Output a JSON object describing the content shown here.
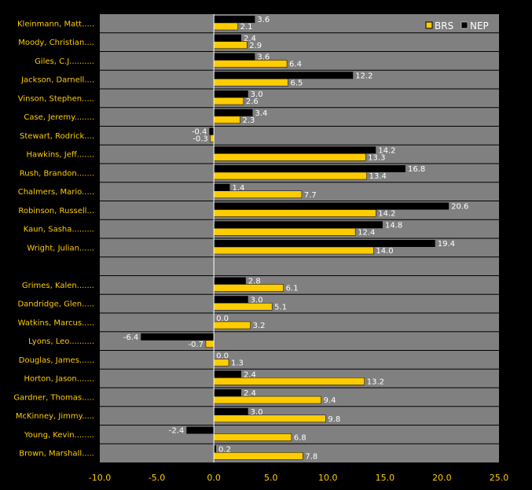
{
  "chart_data": {
    "type": "bar",
    "orientation": "horizontal",
    "title": "",
    "xlabel": "",
    "ylabel": "",
    "xlim": [
      -10,
      25
    ],
    "xticks": [
      -10,
      -5,
      0,
      5,
      10,
      15,
      20,
      25
    ],
    "xtick_labels": [
      "-10.0",
      "-5.0",
      "0.0",
      "5.0",
      "10.0",
      "15.0",
      "20.0",
      "25.0"
    ],
    "grid": true,
    "legend_position": "top-right",
    "categories": [
      "Kleinmann, Matt.....",
      "Moody, Christian....",
      "Giles, C.J..........",
      "Jackson, Darnell....",
      "Vinson, Stephen.....",
      "Case, Jeremy........",
      "Stewart, Rodrick....",
      "Hawkins, Jeff.......",
      "Rush, Brandon.......",
      "Chalmers, Mario.....",
      "Robinson, Russell...",
      "Kaun, Sasha.........",
      "Wright, Julian......",
      "",
      "Grimes, Kalen.......",
      "Dandridge, Glen.....",
      "Watkins, Marcus.....",
      "Lyons, Leo..........",
      "Douglas, James......",
      "Horton, Jason.......",
      "Gardner, Thomas.....",
      "McKinney, Jimmy.....",
      "Young, Kevin........",
      "Brown, Marshall....."
    ],
    "series": [
      {
        "name": "NEP",
        "color": "#000000",
        "values": [
          3.6,
          2.4,
          3.6,
          12.2,
          3.0,
          3.4,
          -0.4,
          14.2,
          16.8,
          1.4,
          20.6,
          14.8,
          19.4,
          null,
          2.8,
          3.0,
          0.0,
          -6.4,
          0.0,
          2.4,
          2.4,
          3.0,
          -2.4,
          0.2
        ],
        "labels": [
          "3.6",
          "2.4",
          "3.6",
          "12.2",
          "3.0",
          "3.4",
          "-0.4",
          "14.2",
          "16.8",
          "1.4",
          "20.6",
          "14.8",
          "19.4",
          "",
          "2.8",
          "3.0",
          "0.0",
          "-6.4",
          "0.0",
          "2.4",
          "2.4",
          "3.0",
          "-2.4",
          "0.2"
        ]
      },
      {
        "name": "BRS",
        "color": "#ffcc00",
        "values": [
          2.1,
          2.9,
          6.4,
          6.5,
          2.6,
          2.3,
          -0.3,
          13.3,
          13.4,
          7.7,
          14.2,
          12.4,
          14.0,
          null,
          6.1,
          5.1,
          3.2,
          -0.7,
          1.3,
          13.2,
          9.4,
          9.8,
          6.8,
          7.8
        ],
        "labels": [
          "2.1",
          "2.9",
          "6.4",
          "6.5",
          "2.6",
          "2.3",
          "-0.3",
          "13.3",
          "13.4",
          "7.7",
          "14.2",
          "12.4",
          "14.0",
          "",
          "6.1",
          "5.1",
          "3.2",
          "-0.7",
          "1.3",
          "13.2",
          "9.4",
          "9.8",
          "6.8",
          "7.8"
        ]
      }
    ],
    "legend": [
      {
        "name": "BRS",
        "color": "#ffcc00"
      },
      {
        "name": "NEP",
        "color": "#000000"
      }
    ]
  }
}
